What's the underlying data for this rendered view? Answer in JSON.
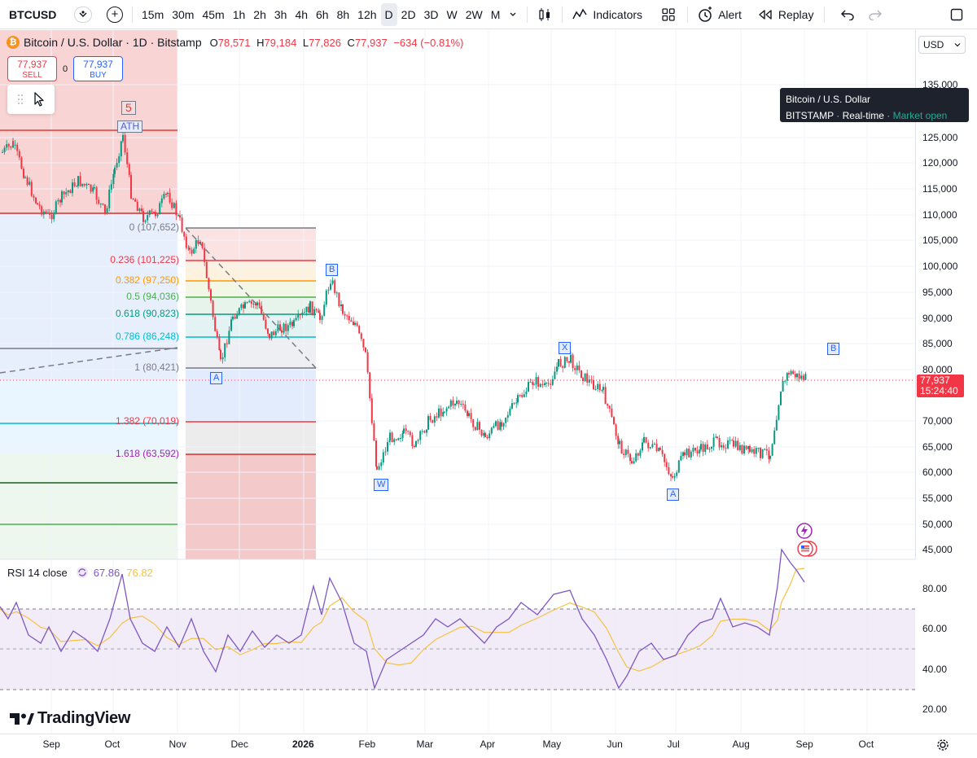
{
  "toolbar": {
    "symbol": "BTCUSD",
    "intervals": [
      "15m",
      "30m",
      "45m",
      "1h",
      "2h",
      "3h",
      "4h",
      "6h",
      "8h",
      "12h",
      "D",
      "2D",
      "3D",
      "W",
      "2W",
      "M"
    ],
    "active_interval": "D",
    "indicators_label": "Indicators",
    "alert_label": "Alert",
    "replay_label": "Replay"
  },
  "legend": {
    "title": "Bitcoin / U.S. Dollar · 1D · Bitstamp",
    "o_label": "O",
    "o_value": "78,571",
    "h_label": "H",
    "h_value": "79,184",
    "l_label": "L",
    "l_value": "77,826",
    "c_label": "C",
    "c_value": "77,937",
    "change": "−634 (−0.81%)"
  },
  "trade": {
    "sell_price": "77,937",
    "sell_label": "SELL",
    "spread": "0",
    "buy_price": "77,937",
    "buy_label": "BUY"
  },
  "price_scale": {
    "currency": "USD",
    "labels": [
      "135,000",
      "125,000",
      "120,000",
      "115,000",
      "110,000",
      "105,000",
      "100,000",
      "95,000",
      "90,000",
      "85,000",
      "80,000",
      "70,000",
      "65,000",
      "60,000",
      "55,000",
      "50,000",
      "45,000"
    ],
    "current_price": "77,937",
    "countdown": "15:24:40"
  },
  "tooltip": {
    "title": "Bitcoin / U.S. Dollar",
    "exchange": "BITSTAMP",
    "feed": "Real-time",
    "status": "Market open"
  },
  "annotations": {
    "wave5": "5",
    "ath": "ATH",
    "wave_a1": "A",
    "wave_b1": "B",
    "wave_w": "W",
    "wave_x": "X",
    "wave_a2": "A",
    "wave_b2": "B"
  },
  "fib": [
    {
      "label": "0 (107,652)",
      "color": "#787b86"
    },
    {
      "label": "0.236 (101,225)",
      "color": "#f23645"
    },
    {
      "label": "0.382 (97,250)",
      "color": "#ff9800"
    },
    {
      "label": "0.5 (94,036)",
      "color": "#4caf50"
    },
    {
      "label": "0.618 (90,823)",
      "color": "#089981"
    },
    {
      "label": "0.786 (86,248)",
      "color": "#00bcd4"
    },
    {
      "label": "1 (80,421)",
      "color": "#787b86"
    },
    {
      "label": "1.382 (70,019)",
      "color": "#f23645"
    },
    {
      "label": "1.618 (63,592)",
      "color": "#9c27b0"
    }
  ],
  "rsi": {
    "name": "RSI 14 close",
    "value": "67.86",
    "ma_value": "76.82",
    "labels": [
      "80.00",
      "60.00",
      "40.00",
      "20.00"
    ]
  },
  "time_axis": {
    "labels": [
      "Sep",
      "Oct",
      "Nov",
      "Dec",
      "2026",
      "Feb",
      "Mar",
      "Apr",
      "May",
      "Jun",
      "Jul",
      "Aug",
      "Sep",
      "Oct"
    ]
  },
  "brand": "TradingView",
  "colors": {
    "up": "#089981",
    "down": "#f23645",
    "rsi_line": "#7e57c2",
    "rsi_ma": "#f5c242",
    "accent": "#2962ff"
  }
}
